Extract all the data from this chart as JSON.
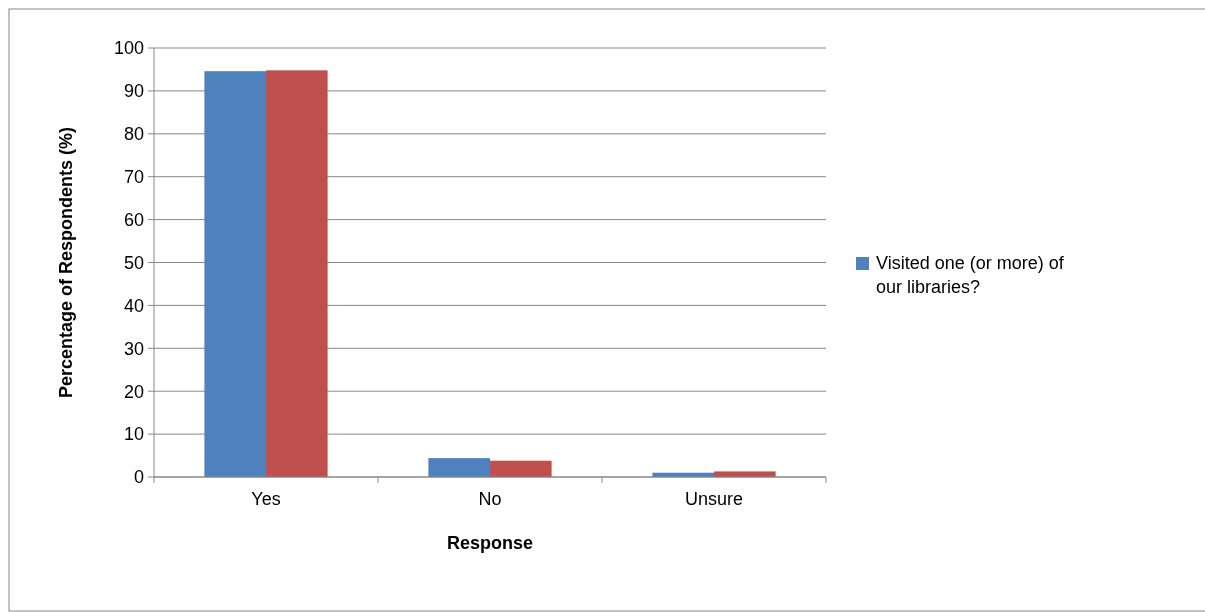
{
  "chart_data": {
    "type": "bar",
    "xlabel": "Response",
    "ylabel": "Percentage of Respondents (%)",
    "categories": [
      "Yes",
      "No",
      "Unsure"
    ],
    "series": [
      {
        "name": "Visited one (or more) of our libraries?",
        "color": "#4f81bd",
        "values": [
          94.6,
          4.4,
          1.0
        ]
      },
      {
        "color": "#c0504d",
        "values": [
          94.8,
          3.8,
          1.3
        ]
      }
    ],
    "ylim": [
      0,
      100
    ],
    "yticks": [
      0,
      10,
      20,
      30,
      40,
      50,
      60,
      70,
      80,
      90,
      100
    ],
    "grid": "y",
    "legend": "right"
  }
}
